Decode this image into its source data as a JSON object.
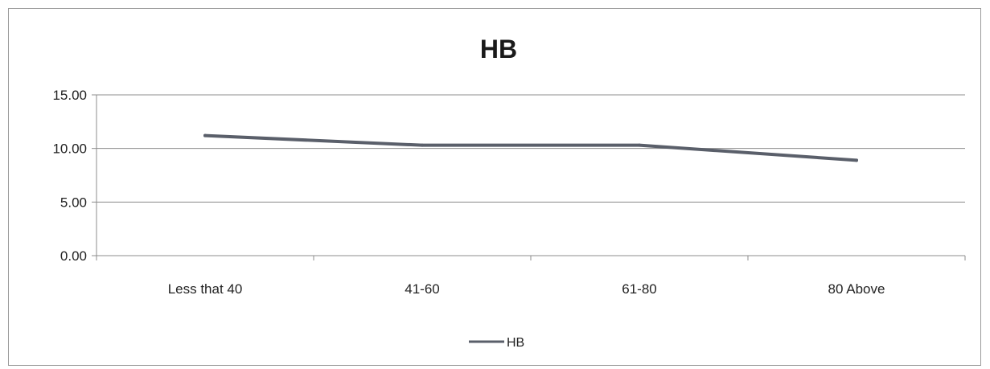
{
  "chart_data": {
    "type": "line",
    "title": "HB",
    "xlabel": "",
    "ylabel": "",
    "categories": [
      "Less that 40",
      "41-60",
      "61-80",
      "80 Above"
    ],
    "series": [
      {
        "name": "HB",
        "values": [
          11.2,
          10.3,
          10.3,
          8.9
        ],
        "color": "#5a5f6a"
      }
    ],
    "ylim": [
      0,
      15
    ],
    "yticks": [
      "0.00",
      "5.00",
      "10.00",
      "15.00"
    ],
    "grid": true,
    "legend": "bottom"
  }
}
